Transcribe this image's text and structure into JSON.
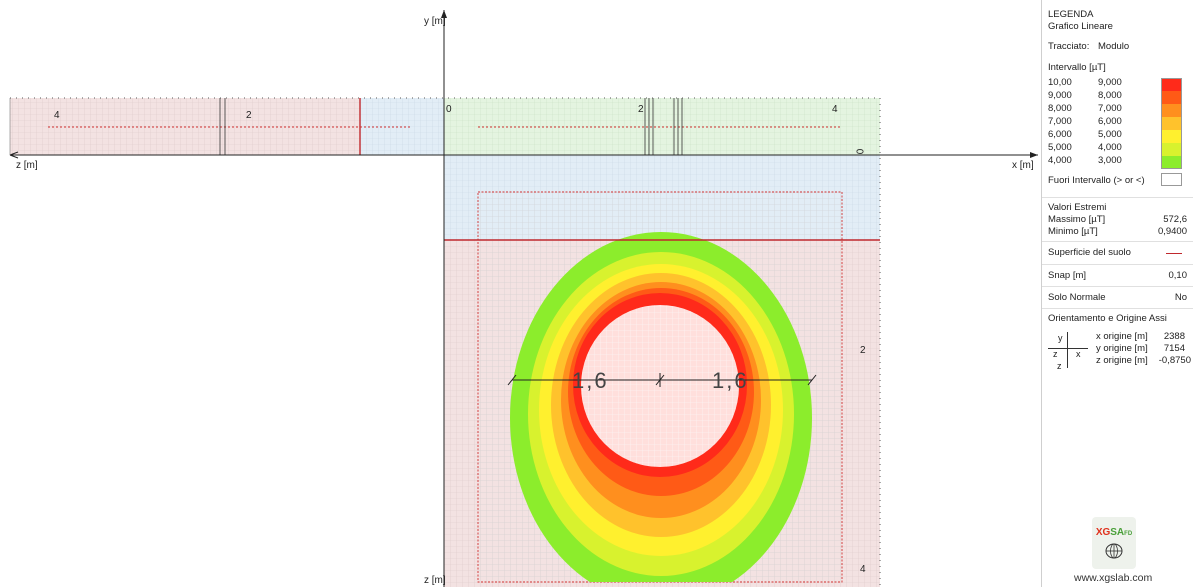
{
  "axes": {
    "y_label": "y [m]",
    "x_label": "x [m]",
    "z_label_left": "z [m]",
    "z_label_bottom": "z [m]"
  },
  "ruler_labels": {
    "left": [
      "4",
      "2"
    ],
    "right": [
      "0",
      "2",
      "4"
    ],
    "side_zero": "0",
    "vertical": [
      "2",
      "4"
    ]
  },
  "dimensions": {
    "left": "1,6",
    "right": "1,6"
  },
  "legend": {
    "title": "LEGENDA",
    "subtitle": "Grafico Lineare",
    "trace_label": "Tracciato:",
    "trace_value": "Modulo",
    "interval_label": "Intervallo [µT]",
    "intervals": [
      {
        "hi": "10,00",
        "lo": "9,000",
        "color": "#ff2a1a"
      },
      {
        "hi": "9,000",
        "lo": "8,000",
        "color": "#ff5a16"
      },
      {
        "hi": "8,000",
        "lo": "7,000",
        "color": "#ff8f1e"
      },
      {
        "hi": "7,000",
        "lo": "6,000",
        "color": "#ffc22c"
      },
      {
        "hi": "6,000",
        "lo": "5,000",
        "color": "#fff02e"
      },
      {
        "hi": "5,000",
        "lo": "4,000",
        "color": "#d8f22e"
      },
      {
        "hi": "4,000",
        "lo": "3,000",
        "color": "#8ced2c"
      }
    ],
    "out_of_range": "Fuori Intervallo (> or <)",
    "extremes_title": "Valori Estremi",
    "max_label": "Massimo [µT]",
    "max_value": "572,6",
    "min_label": "Minimo [µT]",
    "min_value": "0,9400",
    "ground_label": "Superficie del suolo",
    "ground_color": "#c0282d",
    "snap_label": "Snap [m]",
    "snap_value": "0,10",
    "normal_label": "Solo Normale",
    "normal_value": "No",
    "orient_title": "Orientamento e Origine Assi",
    "mini_y": "y",
    "mini_z": "z",
    "mini_x": "x",
    "mini_z2": "z",
    "x_origin_label": "x origine [m]",
    "x_origin_value": "2388",
    "y_origin_label": "y origine [m]",
    "y_origin_value": "7154",
    "z_origin_label": "z origine [m]",
    "z_origin_value": "-0,8750",
    "logo_text_a": "XG",
    "logo_text_b": "SA",
    "logo_text_c": "FD",
    "website": "www.xgslab.com"
  },
  "colors": {
    "grid": "#d8d8d8",
    "pink_zone": "#f3e3e3",
    "blue_zone": "#e3eef7",
    "green_zone": "#e5f4e2",
    "ring_outer": "#8ced2c"
  }
}
